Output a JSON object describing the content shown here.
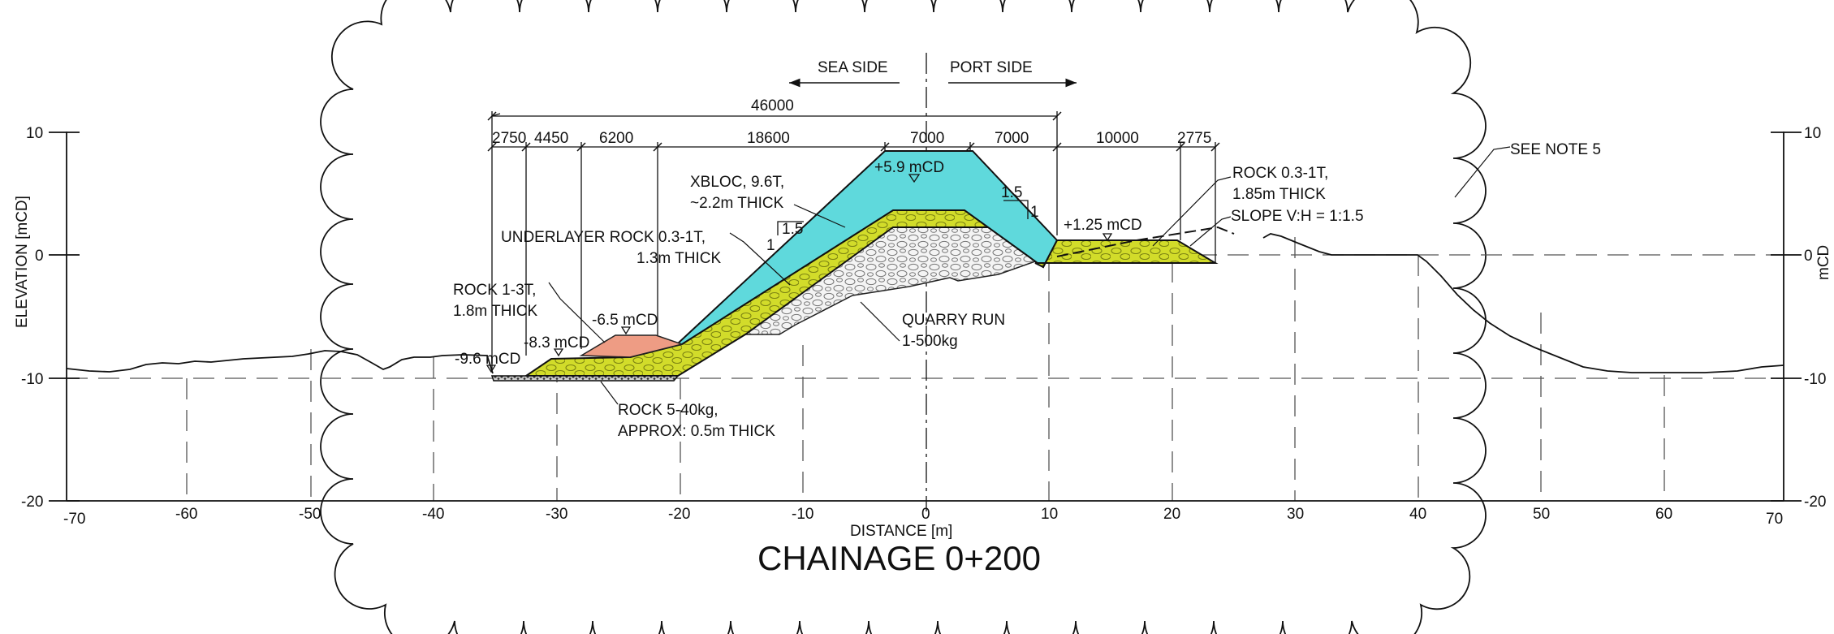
{
  "drawing": {
    "title": "CHAINAGE 0+200",
    "x_axis_label": "DISTANCE [m]",
    "y_axis_label_left": "ELEVATION [mCD]",
    "y_axis_label_right": "mCD",
    "x_ticks": [
      "-70",
      "-60",
      "-50",
      "-40",
      "-30",
      "-20",
      "-10",
      "0",
      "10",
      "20",
      "30",
      "40",
      "50",
      "60",
      "70"
    ],
    "y_ticks_left": [
      "10",
      "0",
      "-10",
      "-20"
    ],
    "y_ticks_right": [
      "10",
      "0",
      "-10",
      "-20"
    ],
    "direction": {
      "sea": "SEA SIDE",
      "port": "PORT SIDE"
    },
    "dimensions": {
      "overall": "46000",
      "segments": [
        "2750",
        "4450",
        "6200",
        "18600",
        "7000",
        "7000",
        "10000",
        "2775"
      ]
    },
    "levels": {
      "crest": "+5.9 mCD",
      "port_berm": "+1.25 mCD",
      "toe_rock": "-6.5 mCD",
      "toe_under": "-8.3 mCD",
      "toe_bed": "-9.6 mCD"
    },
    "slopes": {
      "sea_h": "1.5",
      "sea_v": "1",
      "port_h": "1.5",
      "port_v": "1"
    },
    "annotations": {
      "xbloc_1": "XBLOC, 9.6T,",
      "xbloc_2": "~2.2m THICK",
      "under_1": "UNDERLAYER ROCK 0.3-1T,",
      "under_2": "1.3m THICK",
      "rock13_1": "ROCK 1-3T,",
      "rock13_2": "1.8m THICK",
      "quarry_1": "QUARRY RUN",
      "quarry_2": "1-500kg",
      "rock540_1": "ROCK 5-40kg,",
      "rock540_2": "APPROX: 0.5m THICK",
      "rockport_1": "ROCK 0.3-1T,",
      "rockport_2": "1.85m THICK",
      "slope_note": "SLOPE V:H = 1:1.5",
      "note5": "SEE NOTE 5"
    },
    "colors": {
      "armour": "#5fd9dc",
      "underlayer": "#d2dc2a",
      "toe_rock": "#ee9c84",
      "quarry_run": "#f2f2f2",
      "bedding": "#8a8a8a"
    }
  }
}
